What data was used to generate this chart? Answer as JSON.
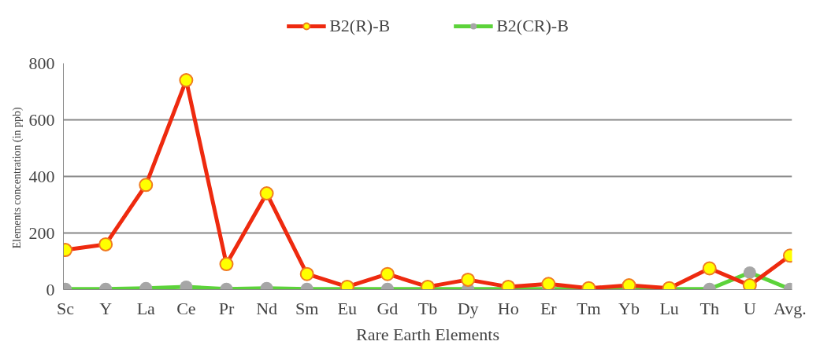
{
  "chart_data": {
    "type": "line",
    "xlabel": "Rare Earth Elements",
    "ylabel": "Elements concentration  (in ppb)",
    "categories": [
      "Sc",
      "Y",
      "La",
      "Ce",
      "Pr",
      "Nd",
      "Sm",
      "Eu",
      "Gd",
      "Tb",
      "Dy",
      "Ho",
      "Er",
      "Tm",
      "Yb",
      "Lu",
      "Th",
      "U",
      "Avg."
    ],
    "series": [
      {
        "name": "B2(R)-B",
        "color": "#ee2a0f",
        "values": [
          140,
          160,
          370,
          740,
          90,
          340,
          55,
          10,
          55,
          10,
          35,
          10,
          20,
          5,
          15,
          5,
          75,
          15,
          120
        ]
      },
      {
        "name": "B2(CR)-B",
        "color": "#5cd33a",
        "values": [
          2,
          2,
          5,
          10,
          2,
          5,
          2,
          2,
          2,
          2,
          2,
          2,
          2,
          2,
          2,
          2,
          2,
          60,
          2
        ]
      }
    ],
    "ylim": [
      0,
      800
    ],
    "yticks": [
      0,
      200,
      400,
      600,
      800
    ],
    "grid": "y",
    "legend": "top",
    "marker": "circle"
  }
}
